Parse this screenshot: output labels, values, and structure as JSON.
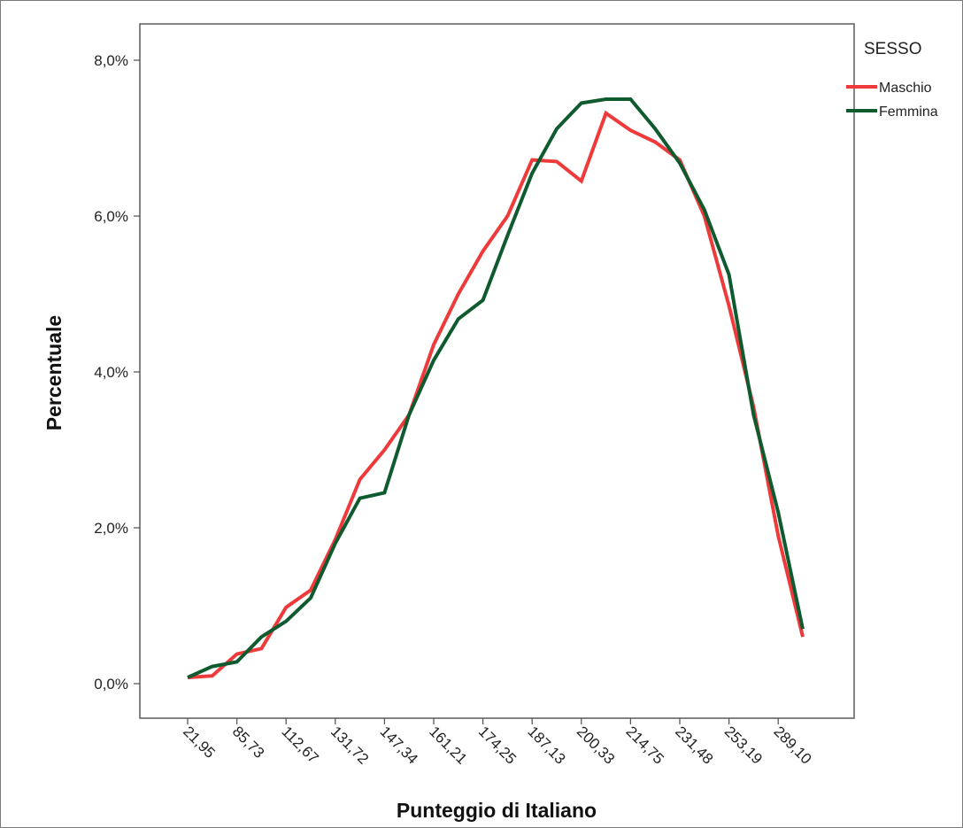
{
  "chart_data": {
    "type": "line",
    "title": "",
    "xlabel": "Punteggio di Italiano",
    "ylabel": "Percentuale",
    "ylim": [
      0,
      8
    ],
    "yticks": [
      "0,0%",
      "2,0%",
      "4,0%",
      "6,0%",
      "8,0%"
    ],
    "ytick_values": [
      0,
      2,
      4,
      6,
      8
    ],
    "xtick_labels": [
      "21,95",
      "85,73",
      "112,67",
      "131,72",
      "147,34",
      "161,21",
      "174,25",
      "187,13",
      "200,33",
      "214,75",
      "231,48",
      "253,19",
      "289,10"
    ],
    "xtick_positions": [
      0,
      2,
      4,
      6,
      8,
      10,
      12,
      14,
      16,
      18,
      20,
      22,
      24
    ],
    "x": [
      0,
      1,
      2,
      3,
      4,
      5,
      6,
      7,
      8,
      9,
      10,
      11,
      12,
      13,
      14,
      15,
      16,
      17,
      18,
      19,
      20,
      21,
      22,
      23,
      24,
      25
    ],
    "legend": {
      "title": "SESSO",
      "position": "top-right"
    },
    "grid": false,
    "series": [
      {
        "name": "Maschio",
        "color": "#ee3a3a",
        "values": [
          0.08,
          0.1,
          0.38,
          0.45,
          0.98,
          1.2,
          1.85,
          2.62,
          3.0,
          3.45,
          4.35,
          5.0,
          5.55,
          6.0,
          6.72,
          6.7,
          6.45,
          7.32,
          7.1,
          6.95,
          6.72,
          6.0,
          4.85,
          3.55,
          1.9,
          0.6
        ]
      },
      {
        "name": "Femmina",
        "color": "#0f5a2e",
        "values": [
          0.08,
          0.22,
          0.28,
          0.6,
          0.8,
          1.1,
          1.8,
          2.38,
          2.45,
          3.45,
          4.15,
          4.68,
          4.92,
          5.75,
          6.55,
          7.12,
          7.45,
          7.5,
          7.5,
          7.12,
          6.68,
          6.08,
          5.25,
          3.45,
          2.2,
          0.7
        ]
      }
    ]
  }
}
